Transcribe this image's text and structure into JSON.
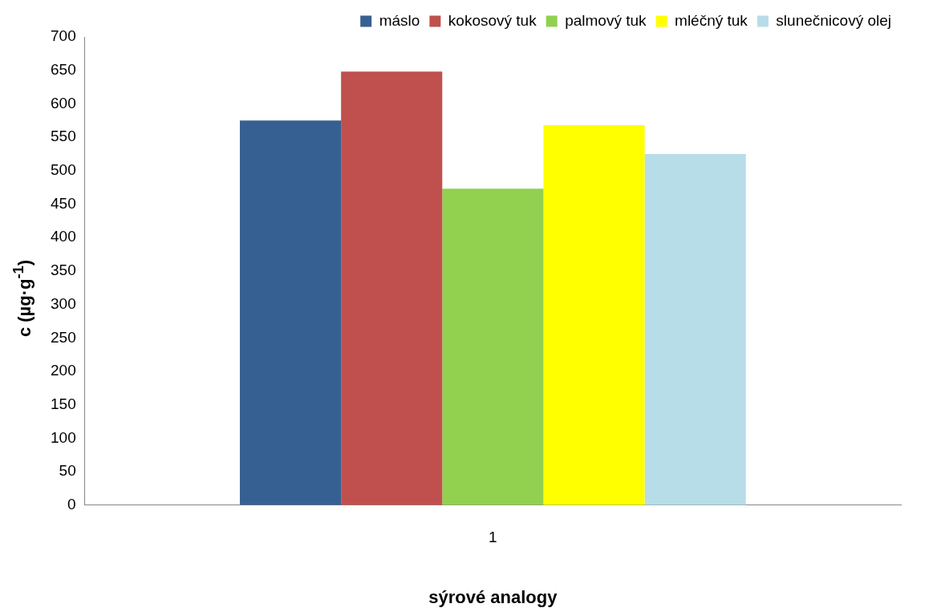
{
  "chart_data": {
    "type": "bar",
    "xlabel": "sýrové analogy",
    "ylabel": "c (µg·g$^{-1}$)",
    "categories": [
      "1"
    ],
    "series": [
      {
        "name": "máslo",
        "color": "#376092",
        "values": [
          575
        ]
      },
      {
        "name": "kokosový tuk",
        "color": "#c0504d",
        "values": [
          648
        ]
      },
      {
        "name": "palmový tuk",
        "color": "#92d050",
        "values": [
          473
        ]
      },
      {
        "name": "mléčný tuk",
        "color": "#ffff00",
        "values": [
          568
        ]
      },
      {
        "name": "slunečnicový olej",
        "color": "#b7dde8",
        "values": [
          525
        ]
      }
    ],
    "ylim": [
      0,
      700
    ],
    "yticks": [
      0,
      50,
      100,
      150,
      200,
      250,
      300,
      350,
      400,
      450,
      500,
      550,
      600,
      650,
      700
    ],
    "grid": false,
    "legend": "top"
  }
}
